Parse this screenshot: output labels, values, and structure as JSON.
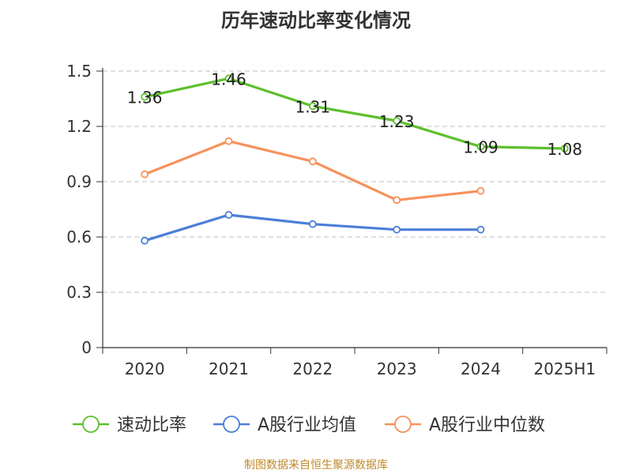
{
  "chart_data": {
    "type": "line",
    "title": "历年速动比率变化情况",
    "categories": [
      "2020",
      "2021",
      "2022",
      "2023",
      "2024",
      "2025H1"
    ],
    "yticks": [
      "0",
      "0.3",
      "0.6",
      "0.9",
      "1.2",
      "1.5"
    ],
    "ylim": [
      0,
      1.5
    ],
    "grid": true,
    "legend_position": "bottom",
    "series": [
      {
        "name": "速动比率",
        "color": "#5cc02c",
        "values": [
          1.36,
          1.46,
          1.31,
          1.23,
          1.09,
          1.08
        ],
        "labels": [
          "1.36",
          "1.46",
          "1.31",
          "1.23",
          "1.09",
          "1.08"
        ],
        "show_labels": true
      },
      {
        "name": "A股行业均值",
        "color": "#4b7fd8",
        "values": [
          0.58,
          0.72,
          0.67,
          0.64,
          0.64,
          null
        ],
        "show_labels": false
      },
      {
        "name": "A股行业中位数",
        "color": "#f7915b",
        "values": [
          0.94,
          1.12,
          1.01,
          0.8,
          0.85,
          null
        ],
        "show_labels": false
      }
    ]
  },
  "source_note": "制图数据来自恒生聚源数据库"
}
